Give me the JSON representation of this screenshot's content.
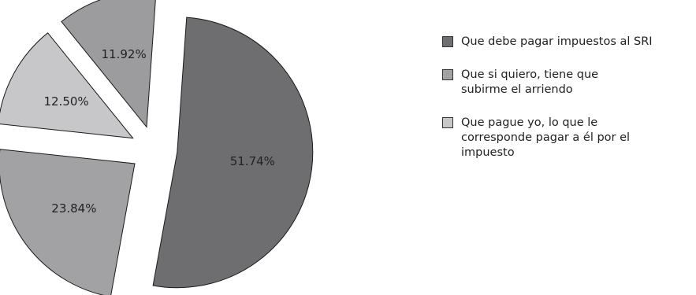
{
  "chart_data": {
    "type": "pie",
    "title": "",
    "slices": [
      {
        "label": "Que debe pagar impuestos al SRI",
        "value": 51.74,
        "value_label": "51.74%",
        "color": "#6e6e70"
      },
      {
        "label": "Que si quiero, tiene que subirme el arriendo",
        "value": 23.84,
        "value_label": "23.84%",
        "color": "#a2a2a4"
      },
      {
        "label": "Que pague yo, lo que le corresponde pagar a él por el impuesto",
        "value": 12.5,
        "value_label": "12.50%",
        "color": "#c7c7c9"
      },
      {
        "label": "",
        "value": 11.92,
        "value_label": "11.92%",
        "color": "#9c9c9e"
      }
    ],
    "legend": {
      "placement": "right",
      "items": [
        {
          "text": "Que debe pagar impuestos al SRI",
          "color": "#6e6e70"
        },
        {
          "text": "Que si quiero, tiene que\nsubirme el arriendo",
          "color": "#a2a2a4"
        },
        {
          "text": "Que pague yo, lo que le\ncorresponde pagar a él por el\nimpuesto",
          "color": "#c7c7c9"
        }
      ]
    }
  }
}
